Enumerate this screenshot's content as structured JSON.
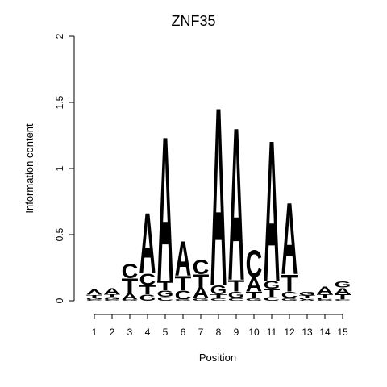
{
  "chart_data": {
    "type": "sequence-logo",
    "title": "ZNF35",
    "xlabel": "Position",
    "ylabel": "Information content",
    "ylim": [
      0,
      2
    ],
    "yticks": [
      "0",
      "0.5",
      "1",
      "1.5",
      "2"
    ],
    "xticks": [
      "1",
      "2",
      "3",
      "4",
      "5",
      "6",
      "7",
      "8",
      "9",
      "10",
      "11",
      "12",
      "13",
      "14",
      "15"
    ],
    "colors": {
      "A": "#00ee00",
      "C": "#0000ee",
      "G": "#ffa500",
      "T": "#ee0000"
    },
    "positions": [
      [
        [
          "C",
          0.01
        ],
        [
          "G",
          0.015
        ],
        [
          "T",
          0.02
        ],
        [
          "A",
          0.04
        ]
      ],
      [
        [
          "C",
          0.01
        ],
        [
          "G",
          0.02
        ],
        [
          "T",
          0.02
        ],
        [
          "A",
          0.05
        ]
      ],
      [
        [
          "G",
          0.01
        ],
        [
          "A",
          0.05
        ],
        [
          "T",
          0.11
        ],
        [
          "C",
          0.11
        ]
      ],
      [
        [
          "G",
          0.05
        ],
        [
          "T",
          0.07
        ],
        [
          "C",
          0.09
        ],
        [
          "A",
          0.47
        ]
      ],
      [
        [
          "C",
          0.03
        ],
        [
          "G",
          0.05
        ],
        [
          "T",
          0.07
        ],
        [
          "A",
          1.13
        ]
      ],
      [
        [
          "G",
          0.01
        ],
        [
          "C",
          0.07
        ],
        [
          "T",
          0.11
        ],
        [
          "A",
          0.27
        ]
      ],
      [
        [
          "G",
          0.02
        ],
        [
          "A",
          0.08
        ],
        [
          "T",
          0.1
        ],
        [
          "C",
          0.11
        ]
      ],
      [
        [
          "C",
          0.02
        ],
        [
          "T",
          0.03
        ],
        [
          "G",
          0.07
        ],
        [
          "A",
          1.39
        ]
      ],
      [
        [
          "C",
          0.02
        ],
        [
          "G",
          0.05
        ],
        [
          "T",
          0.09
        ],
        [
          "A",
          1.19
        ]
      ],
      [
        [
          "G",
          0.02
        ],
        [
          "T",
          0.05
        ],
        [
          "A",
          0.11
        ],
        [
          "C",
          0.21
        ]
      ],
      [
        [
          "C",
          0.03
        ],
        [
          "T",
          0.06
        ],
        [
          "G",
          0.06
        ],
        [
          "A",
          1.1
        ]
      ],
      [
        [
          "G",
          0.02
        ],
        [
          "C",
          0.05
        ],
        [
          "T",
          0.13
        ],
        [
          "A",
          0.56
        ]
      ],
      [
        [
          "A",
          0.01
        ],
        [
          "C",
          0.01
        ],
        [
          "T",
          0.02
        ],
        [
          "G",
          0.03
        ]
      ],
      [
        [
          "G",
          0.01
        ],
        [
          "C",
          0.01
        ],
        [
          "T",
          0.03
        ],
        [
          "A",
          0.06
        ]
      ],
      [
        [
          "C",
          0.01
        ],
        [
          "T",
          0.04
        ],
        [
          "A",
          0.05
        ],
        [
          "G",
          0.05
        ]
      ]
    ]
  }
}
